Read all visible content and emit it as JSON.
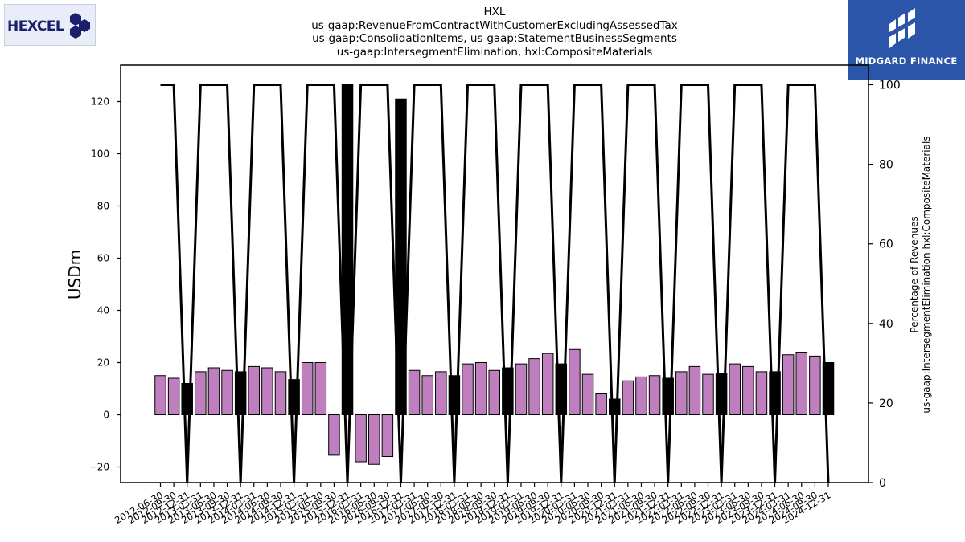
{
  "header": {
    "left_logo_text": "HEXCEL",
    "right_logo_text": "MIDGARD FINANCE",
    "title_lines": [
      "HXL",
      "us-gaap:RevenueFromContractWithCustomerExcludingAssessedTax",
      "us-gaap:ConsolidationItems, us-gaap:StatementBusinessSegments",
      "us-gaap:IntersegmentElimination, hxl:CompositeMaterials"
    ]
  },
  "colors": {
    "bar_default": "#bf7fbf",
    "bar_highlight": "#000000",
    "line": "#000000",
    "logo_right_bg": "#2a55a8",
    "logo_left_text": "#1a1f6b"
  },
  "chart_data": {
    "type": "bar",
    "ylabel": "USDm",
    "y2label_lines": [
      "Percentage of Revenues",
      "us-gaap:IntersegmentElimination hxl:CompositeMaterials"
    ],
    "ylim": [
      -26,
      134
    ],
    "y2lim": [
      0,
      100
    ],
    "yticks": [
      -20,
      0,
      20,
      40,
      60,
      80,
      100,
      120
    ],
    "y2ticks": [
      0,
      20,
      40,
      60,
      80,
      100
    ],
    "grid": false,
    "x_tick_labels": [
      "2012-06-30",
      "2012-09-30",
      "2012-12-31",
      "2013-03-31",
      "2013-06-30",
      "2013-09-30",
      "2013-12-31",
      "2014-03-31",
      "2014-06-30",
      "2014-09-30",
      "2014-12-31",
      "2015-03-31",
      "2015-06-30",
      "2015-09-30",
      "2015-12-31",
      "2016-03-31",
      "2016-06-30",
      "2016-09-30",
      "2016-12-31",
      "2017-03-31",
      "2017-06-30",
      "2017-09-30",
      "2017-12-31",
      "2018-03-31",
      "2018-06-30",
      "2018-09-30",
      "2018-12-31",
      "2019-03-31",
      "2019-06-30",
      "2019-09-30",
      "2019-12-31",
      "2020-03-31",
      "2020-06-30",
      "2020-09-30",
      "2020-12-31",
      "2021-03-31",
      "2021-06-30",
      "2021-09-30",
      "2021-12-31",
      "2022-03-31",
      "2022-06-30",
      "2022-09-30",
      "2022-12-31",
      "2023-03-31",
      "2023-06-30",
      "2023-09-30",
      "2023-12-31",
      "2024-03-31",
      "2024-06-30",
      "2024-09-30",
      "2024-12-31"
    ],
    "bars": [
      {
        "value": 15,
        "highlight": false
      },
      {
        "value": 14,
        "highlight": false
      },
      {
        "value": 12,
        "highlight": true
      },
      {
        "value": 16.5,
        "highlight": false
      },
      {
        "value": 18,
        "highlight": false
      },
      {
        "value": 17,
        "highlight": false
      },
      {
        "value": 16.5,
        "highlight": true
      },
      {
        "value": 18.5,
        "highlight": false
      },
      {
        "value": 18,
        "highlight": false
      },
      {
        "value": 16.5,
        "highlight": false
      },
      {
        "value": 13.5,
        "highlight": true
      },
      {
        "value": 20,
        "highlight": false
      },
      {
        "value": 20,
        "highlight": false
      },
      {
        "value": -15.5,
        "highlight": false
      },
      {
        "value": 126.5,
        "highlight": true
      },
      {
        "value": -18,
        "highlight": false
      },
      {
        "value": -19,
        "highlight": false
      },
      {
        "value": -16,
        "highlight": false
      },
      {
        "value": 121,
        "highlight": true
      },
      {
        "value": 17,
        "highlight": false
      },
      {
        "value": 15,
        "highlight": false
      },
      {
        "value": 16.5,
        "highlight": false
      },
      {
        "value": 15,
        "highlight": true
      },
      {
        "value": 19.5,
        "highlight": false
      },
      {
        "value": 20,
        "highlight": false
      },
      {
        "value": 17,
        "highlight": false
      },
      {
        "value": 18,
        "highlight": true
      },
      {
        "value": 19.5,
        "highlight": false
      },
      {
        "value": 21.5,
        "highlight": false
      },
      {
        "value": 23.5,
        "highlight": false
      },
      {
        "value": 19.5,
        "highlight": true
      },
      {
        "value": 25,
        "highlight": false
      },
      {
        "value": 15.5,
        "highlight": false
      },
      {
        "value": 8,
        "highlight": false
      },
      {
        "value": 6,
        "highlight": true
      },
      {
        "value": 13,
        "highlight": false
      },
      {
        "value": 14.5,
        "highlight": false
      },
      {
        "value": 15,
        "highlight": false
      },
      {
        "value": 14,
        "highlight": true
      },
      {
        "value": 16.5,
        "highlight": false
      },
      {
        "value": 18.5,
        "highlight": false
      },
      {
        "value": 15.5,
        "highlight": false
      },
      {
        "value": 16,
        "highlight": true
      },
      {
        "value": 19.5,
        "highlight": false
      },
      {
        "value": 18.5,
        "highlight": false
      },
      {
        "value": 16.5,
        "highlight": false
      },
      {
        "value": 16.5,
        "highlight": true
      },
      {
        "value": 23,
        "highlight": false
      },
      {
        "value": 24,
        "highlight": false
      },
      {
        "value": 22.5,
        "highlight": false
      },
      {
        "value": 20,
        "highlight": true
      }
    ],
    "percentage_line": [
      100,
      100,
      0,
      100,
      100,
      100,
      0,
      100,
      100,
      100,
      0,
      100,
      100,
      100,
      0,
      100,
      100,
      100,
      0,
      100,
      100,
      100,
      0,
      100,
      100,
      100,
      0,
      100,
      100,
      100,
      0,
      100,
      100,
      100,
      0,
      100,
      100,
      100,
      0,
      100,
      100,
      100,
      0,
      100,
      100,
      100,
      0,
      100,
      100,
      100,
      0
    ]
  }
}
